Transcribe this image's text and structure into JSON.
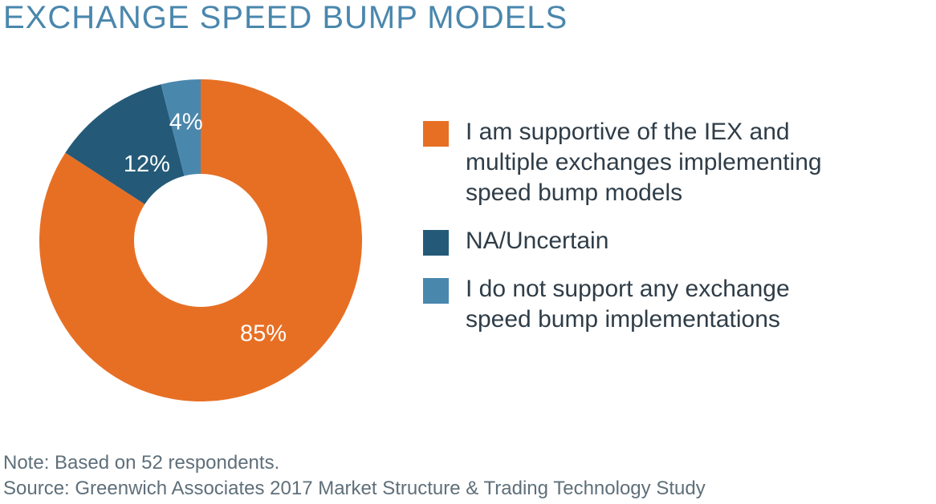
{
  "title": "EXCHANGE SPEED BUMP MODELS",
  "chart_data": {
    "type": "pie",
    "donut": true,
    "title": "EXCHANGE SPEED BUMP MODELS",
    "slices": [
      {
        "name": "I am supportive of the IEX and multiple exchanges implementing speed bump models",
        "value": 85,
        "label": "85%",
        "color": "#e76f24"
      },
      {
        "name": "NA/Uncertain",
        "value": 12,
        "label": "12%",
        "color": "#245a78"
      },
      {
        "name": "I do not support any exchange speed bump implementations",
        "value": 4,
        "label": "4%",
        "color": "#4a87ad"
      }
    ],
    "legend_position": "right"
  },
  "legend": {
    "items": [
      {
        "line1": "I am supportive of the IEX and",
        "line2": "multiple exchanges implementing",
        "line3": "speed bump models"
      },
      {
        "line1": "NA/Uncertain"
      },
      {
        "line1": "I do not support any exchange",
        "line2": "speed bump implementations"
      }
    ]
  },
  "footnotes": {
    "note": "Note: Based on 52 respondents.",
    "source": "Source: Greenwich Associates 2017 Market Structure & Trading Technology Study"
  }
}
